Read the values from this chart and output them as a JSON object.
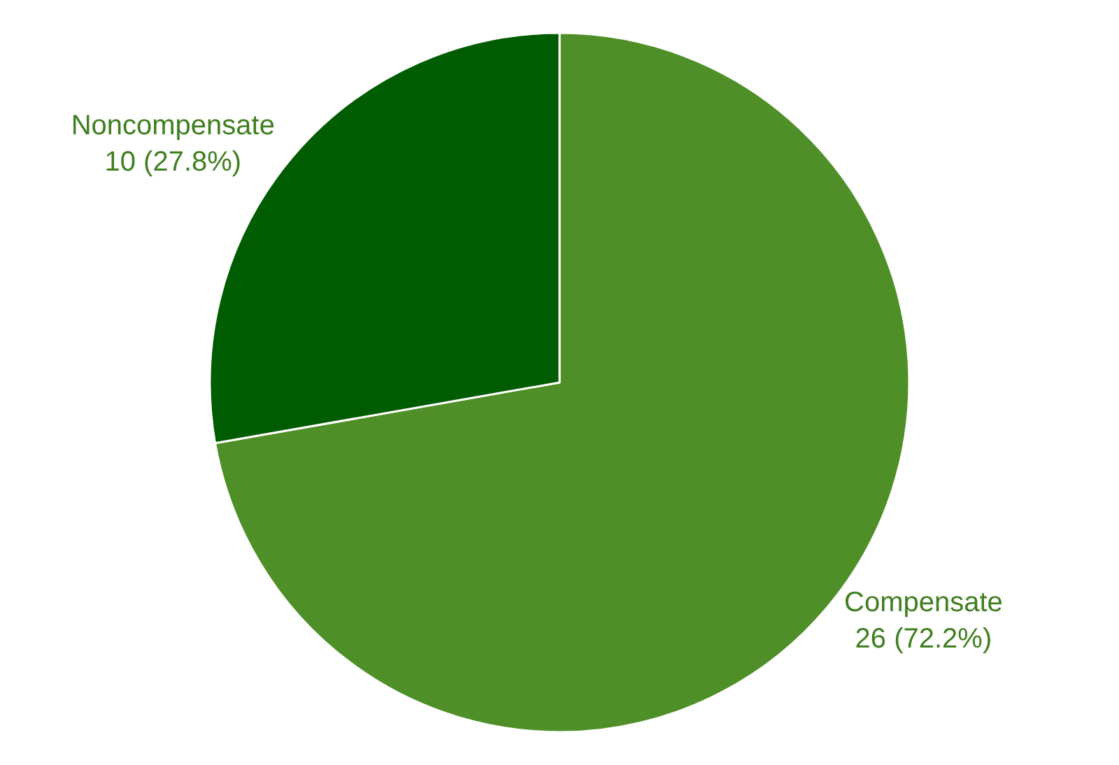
{
  "chart_data": {
    "type": "pie",
    "categories": [
      "Compensate",
      "Noncompensate"
    ],
    "values": [
      26,
      10
    ],
    "value_labels": [
      "26 (72.2%)",
      "10 (27.8%)"
    ],
    "colors": [
      "#4f8f27",
      "#005c00"
    ],
    "legend": false
  }
}
